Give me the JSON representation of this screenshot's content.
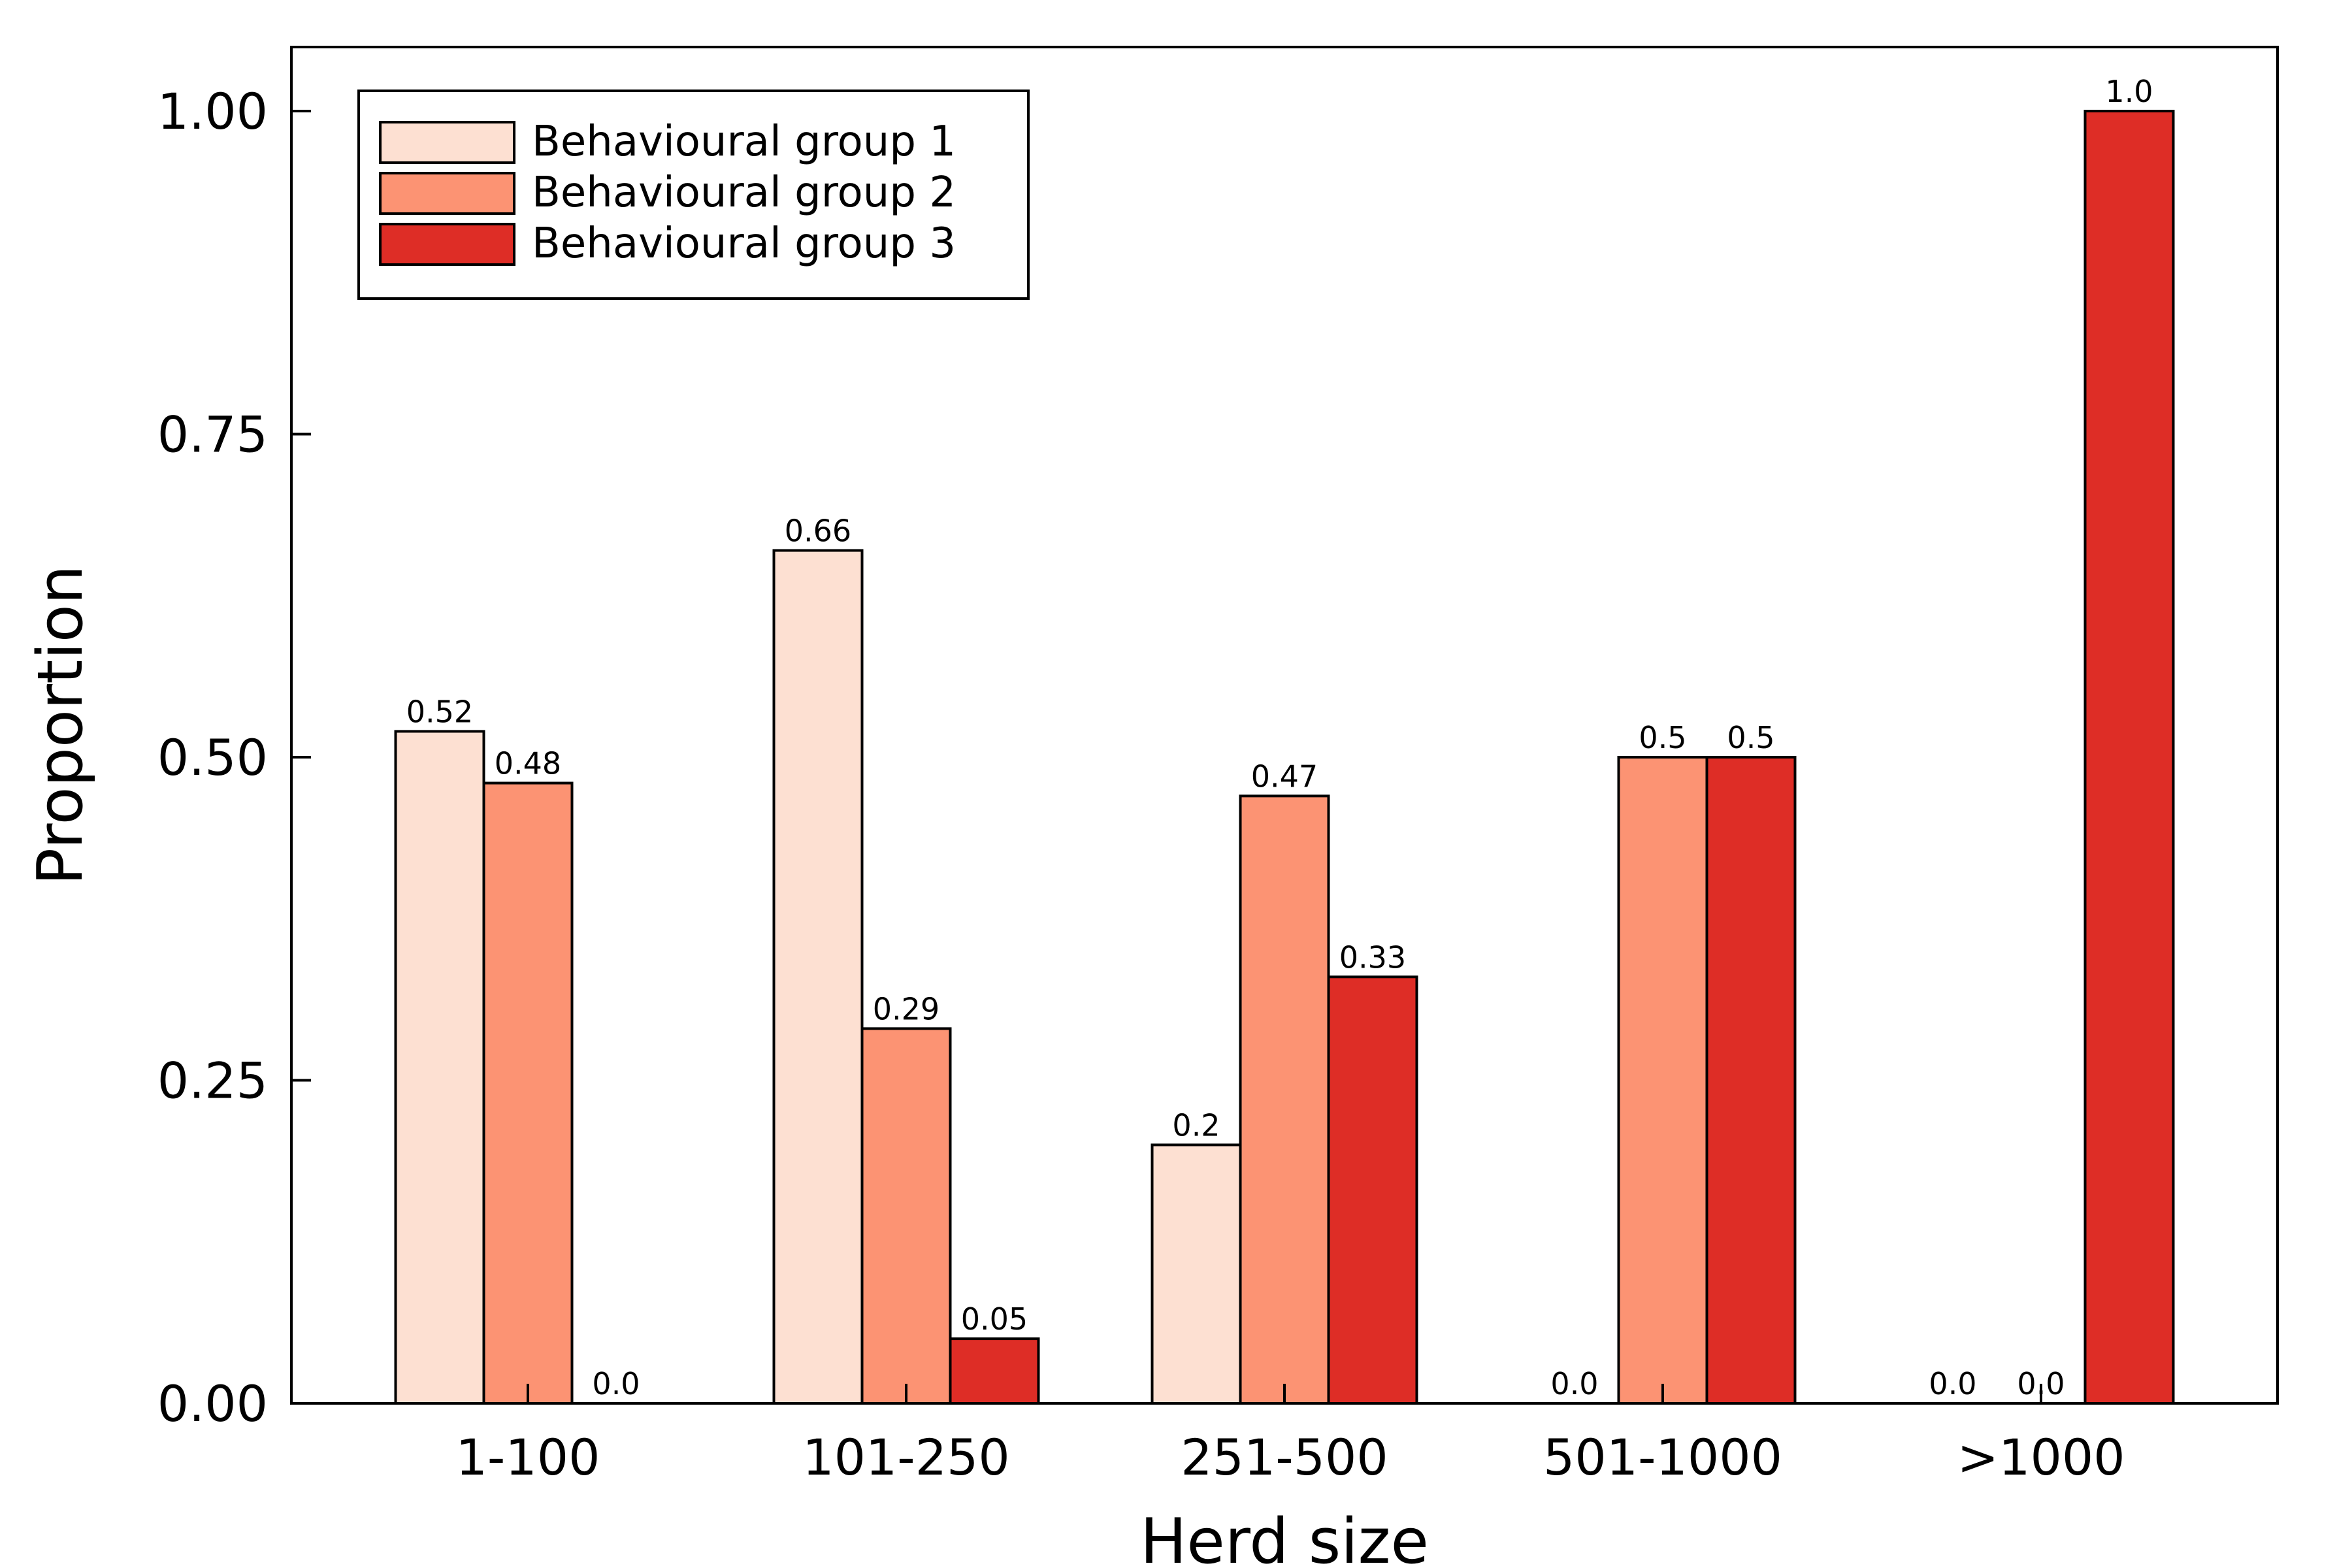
{
  "chart_data": {
    "type": "bar",
    "title": "",
    "xlabel": "Herd size",
    "ylabel": "Proportion",
    "ylim": [
      0,
      1.05
    ],
    "yticks": [
      0.0,
      0.25,
      0.5,
      0.75,
      1.0
    ],
    "ytick_labels": [
      "0.00",
      "0.25",
      "0.50",
      "0.75",
      "1.00"
    ],
    "categories": [
      "1-100",
      "101-250",
      "251-500",
      "501-1000",
      ">1000"
    ],
    "series": [
      {
        "name": "Behavioural group 1",
        "color": "#fde0d2",
        "values": [
          0.52,
          0.66,
          0.2,
          0.0,
          0.0
        ],
        "labels": [
          "0.52",
          "0.66",
          "0.2",
          "0.0",
          "0.0"
        ]
      },
      {
        "name": "Behavioural group 2",
        "color": "#fc9373",
        "values": [
          0.48,
          0.29,
          0.47,
          0.5,
          0.0
        ],
        "labels": [
          "0.48",
          "0.29",
          "0.47",
          "0.5",
          "0.0"
        ]
      },
      {
        "name": "Behavioural group 3",
        "color": "#de2d26",
        "values": [
          0.0,
          0.05,
          0.33,
          0.5,
          1.0
        ],
        "labels": [
          "0.0",
          "0.05",
          "0.33",
          "0.5",
          "1.0"
        ]
      }
    ],
    "legend_position": "top-left",
    "grid": false
  }
}
